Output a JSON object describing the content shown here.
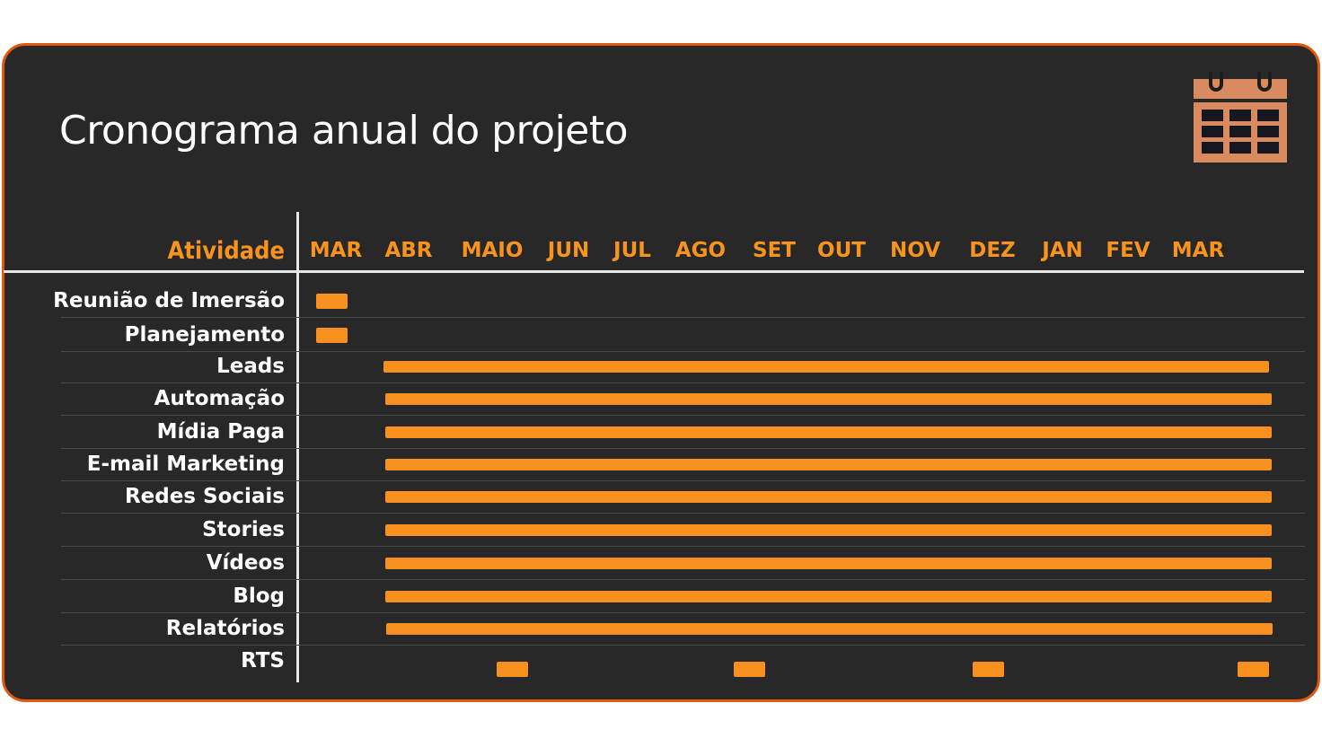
{
  "title": "Cronograma anual do projeto",
  "icon": "calendar-icon",
  "colors": {
    "accent": "#f7931e",
    "border": "#e0580f",
    "background": "#282828"
  },
  "chart_data": {
    "type": "gantt",
    "header_label": "Atividade",
    "months": [
      "MAR",
      "ABR",
      "MAIO",
      "JUN",
      "JUL",
      "AGO",
      "SET",
      "OUT",
      "NOV",
      "DEZ",
      "JAN",
      "FEV",
      "MAR"
    ],
    "x_unit": "month index (0 = first MAR column)",
    "tasks": [
      {
        "name": "Reunião de Imersão",
        "segments": [
          [
            -0.28,
            0.16
          ]
        ]
      },
      {
        "name": "Planejamento",
        "segments": [
          [
            -0.28,
            0.16
          ]
        ]
      },
      {
        "name": "Leads",
        "segments": [
          [
            0.66,
            12.99
          ]
        ]
      },
      {
        "name": "Automação",
        "segments": [
          [
            0.69,
            13.02
          ]
        ]
      },
      {
        "name": "Mídia Paga",
        "segments": [
          [
            0.69,
            13.02
          ]
        ]
      },
      {
        "name": "E-mail Marketing",
        "segments": [
          [
            0.69,
            13.02
          ]
        ]
      },
      {
        "name": "Redes Sociais",
        "segments": [
          [
            0.69,
            13.02
          ]
        ]
      },
      {
        "name": "Stories",
        "segments": [
          [
            0.69,
            13.02
          ]
        ]
      },
      {
        "name": "Vídeos",
        "segments": [
          [
            0.69,
            13.02
          ]
        ]
      },
      {
        "name": "Blog",
        "segments": [
          [
            0.69,
            13.02
          ]
        ]
      },
      {
        "name": "Relatórios",
        "segments": [
          [
            0.7,
            13.04
          ]
        ]
      },
      {
        "name": "RTS",
        "segments": [
          [
            2.24,
            2.68
          ],
          [
            5.54,
            5.98
          ],
          [
            8.86,
            9.3
          ],
          [
            12.55,
            12.99
          ]
        ]
      }
    ]
  }
}
